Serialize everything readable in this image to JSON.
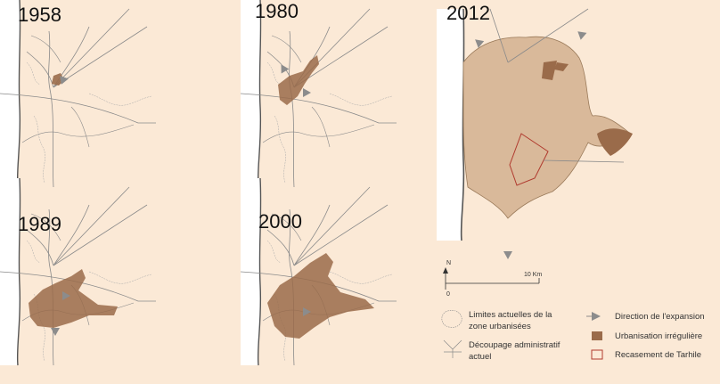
{
  "maps": [
    {
      "year": "1958"
    },
    {
      "year": "1980"
    },
    {
      "year": "2012"
    },
    {
      "year": "1989"
    },
    {
      "year": "2000"
    }
  ],
  "scale": {
    "north": "N",
    "zero": "0",
    "distance": "10 Km"
  },
  "legend": {
    "limits": "Limites actuelles de la zone urbanisées",
    "limits_line1": "Limites actuelles de la",
    "limits_line2": "zone urbanisées",
    "admin_line1": "Découpage administratif",
    "admin_line2": "actuel",
    "direction": "Direction de l'expansion",
    "irregular": "Urbanisation irrégulière",
    "tarhile": "Recasement de Tarhile"
  },
  "colors": {
    "background": "#fbe9d6",
    "urban_fill": "#d9b99a",
    "irregular": "#9a6b4a",
    "tarhile_outline": "#b03a2e",
    "arrow": "#8c8c8c",
    "boundary_line": "#8a8a8a"
  },
  "icons": [
    "north-arrow-icon",
    "direction-arrow-icon",
    "limit-outline-icon",
    "admin-lines-icon",
    "irregular-swatch-icon",
    "tarhile-swatch-icon"
  ]
}
